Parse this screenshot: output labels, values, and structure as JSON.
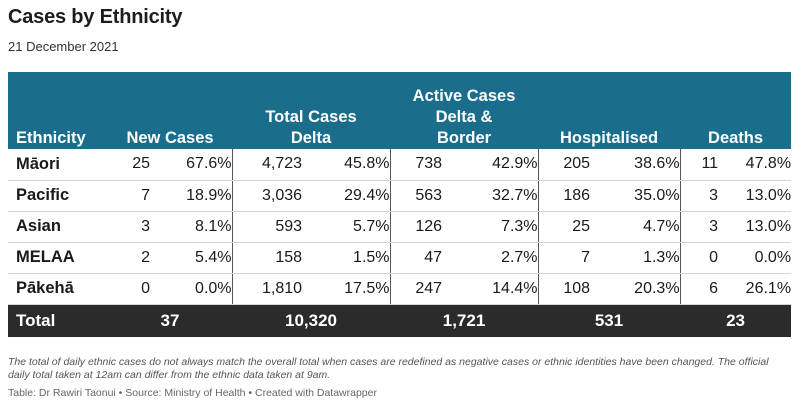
{
  "header": {
    "title": "Cases by Ethnicity",
    "subtitle": "21 December 2021"
  },
  "table": {
    "columns": {
      "ethnicity": "Ethnicity",
      "new_cases": "New Cases",
      "total_cases_line1": "Total Cases",
      "total_cases_line2": "Delta",
      "active_cases_line1": "Active Cases",
      "active_cases_line2": "Delta &",
      "active_cases_line3": "Border",
      "hospitalised": "Hospitalised",
      "deaths": "Deaths"
    },
    "rows": [
      {
        "ethnicity": "Māori",
        "new_n": "25",
        "new_p": "67.6%",
        "total_n": "4,723",
        "total_p": "45.8%",
        "active_n": "738",
        "active_p": "42.9%",
        "hosp_n": "205",
        "hosp_p": "38.6%",
        "deaths_n": "11",
        "deaths_p": "47.8%"
      },
      {
        "ethnicity": "Pacific",
        "new_n": "7",
        "new_p": "18.9%",
        "total_n": "3,036",
        "total_p": "29.4%",
        "active_n": "563",
        "active_p": "32.7%",
        "hosp_n": "186",
        "hosp_p": "35.0%",
        "deaths_n": "3",
        "deaths_p": "13.0%"
      },
      {
        "ethnicity": "Asian",
        "new_n": "3",
        "new_p": "8.1%",
        "total_n": "593",
        "total_p": "5.7%",
        "active_n": "126",
        "active_p": "7.3%",
        "hosp_n": "25",
        "hosp_p": "4.7%",
        "deaths_n": "3",
        "deaths_p": "13.0%"
      },
      {
        "ethnicity": "MELAA",
        "new_n": "2",
        "new_p": "5.4%",
        "total_n": "158",
        "total_p": "1.5%",
        "active_n": "47",
        "active_p": "2.7%",
        "hosp_n": "7",
        "hosp_p": "1.3%",
        "deaths_n": "0",
        "deaths_p": "0.0%"
      },
      {
        "ethnicity": "Pākehā",
        "new_n": "0",
        "new_p": "0.0%",
        "total_n": "1,810",
        "total_p": "17.5%",
        "active_n": "247",
        "active_p": "14.4%",
        "hosp_n": "108",
        "hosp_p": "20.3%",
        "deaths_n": "6",
        "deaths_p": "26.1%"
      }
    ],
    "total": {
      "label": "Total",
      "new_cases": "37",
      "total_cases": "10,320",
      "active_cases": "1,721",
      "hospitalised": "531",
      "deaths": "23"
    }
  },
  "footer": {
    "note": "The total of daily ethnic cases do not always match the overall total when cases are redefined as negative cases or ethnic identities have been changed. The official daily total taken at 12am can differ from the ethnic data taken at 9am.",
    "source": "Table: Dr Rawiri Taonui • Source: Ministry of Health • Created with Datawrapper"
  },
  "colors": {
    "header_bg": "#1a6e8c",
    "total_bg": "#2b2b2b"
  }
}
